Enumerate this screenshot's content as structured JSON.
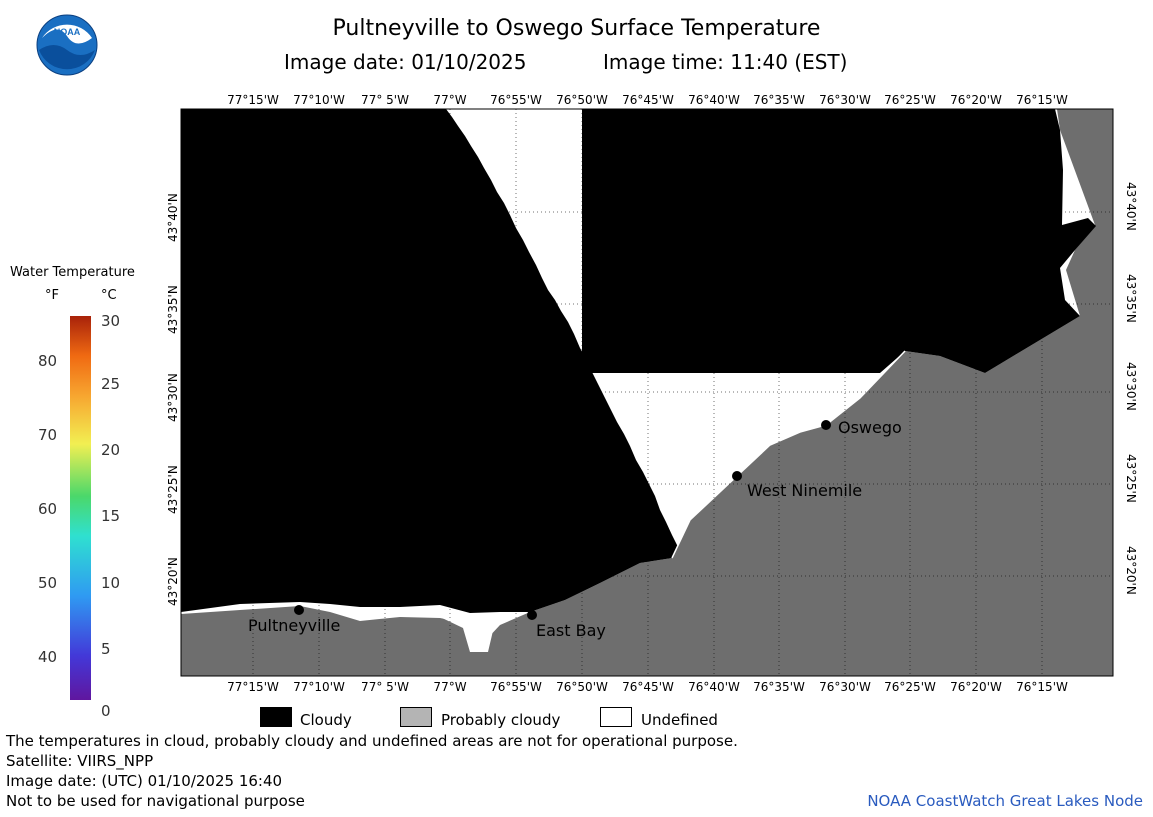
{
  "header": {
    "title": "Pultneyville to Oswego Surface Temperature",
    "image_date": "Image date: 01/10/2025",
    "image_time": "Image time: 11:40 (EST)",
    "logo_text": "NOAA"
  },
  "map": {
    "lon_ticks": [
      "77°15'W",
      "77°10'W",
      "77° 5'W",
      "77°W",
      "76°55'W",
      "76°50'W",
      "76°45'W",
      "76°40'W",
      "76°35'W",
      "76°30'W",
      "76°25'W",
      "76°20'W",
      "76°15'W"
    ],
    "lat_ticks": [
      "43°40'N",
      "43°35'N",
      "43°30'N",
      "43°25'N",
      "43°20'N"
    ],
    "places": {
      "pultneyville": "Pultneyville",
      "east_bay": "East Bay",
      "west_ninemile": "West Ninemile",
      "oswego": "Oswego"
    },
    "colors": {
      "cloudy": "#000000",
      "probably_cloudy": "#6e6e6e",
      "undefined": "#ffffff"
    }
  },
  "legend": {
    "title": "Water Temperature",
    "unit_f": "°F",
    "unit_c": "°C",
    "f_labels": [
      "80",
      "70",
      "60",
      "50",
      "40"
    ],
    "c_labels": [
      "30",
      "25",
      "20",
      "15",
      "10",
      "5",
      "0"
    ]
  },
  "key": {
    "cloudy": "Cloudy",
    "probably_cloudy": "Probably cloudy",
    "undefined": "Undefined"
  },
  "footer": {
    "note": "The temperatures in cloud, probably cloudy and undefined areas are not for operational purpose.",
    "satellite": "Satellite: VIIRS_NPP",
    "utc_date": "Image date: (UTC) 01/10/2025  16:40",
    "nav_warning": "Not to be used for navigational purpose",
    "credit": "NOAA CoastWatch Great Lakes Node"
  }
}
